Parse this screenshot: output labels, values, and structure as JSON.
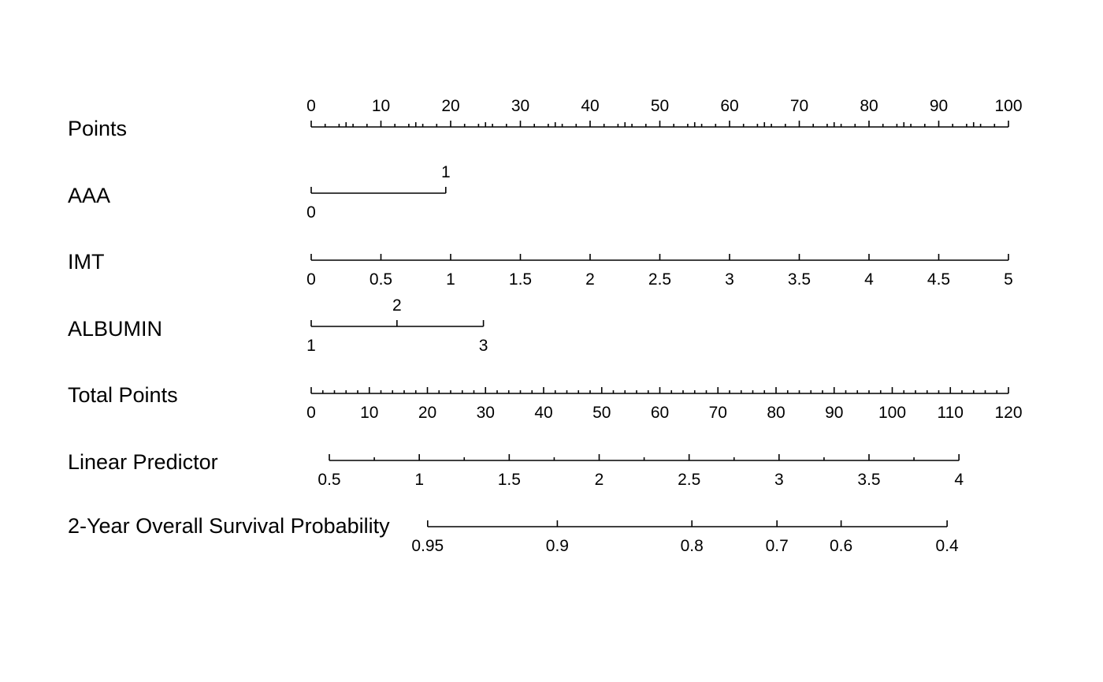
{
  "chart_data": {
    "type": "nomogram",
    "title": "",
    "colors": {
      "line": "#000000",
      "text": "#000000",
      "background": "#ffffff"
    },
    "points_range": [
      0,
      100
    ],
    "rows": [
      {
        "id": "points",
        "label": "Points",
        "labels_position": "above",
        "major_ticks": [
          {
            "value": 0,
            "points": 0,
            "label": "0"
          },
          {
            "value": 10,
            "points": 10,
            "label": "10"
          },
          {
            "value": 20,
            "points": 20,
            "label": "20"
          },
          {
            "value": 30,
            "points": 30,
            "label": "30"
          },
          {
            "value": 40,
            "points": 40,
            "label": "40"
          },
          {
            "value": 50,
            "points": 50,
            "label": "50"
          },
          {
            "value": 60,
            "points": 60,
            "label": "60"
          },
          {
            "value": 70,
            "points": 70,
            "label": "70"
          },
          {
            "value": 80,
            "points": 80,
            "label": "80"
          },
          {
            "value": 90,
            "points": 90,
            "label": "90"
          },
          {
            "value": 100,
            "points": 100,
            "label": "100"
          }
        ],
        "minor_points": [
          2,
          4,
          6,
          8,
          12,
          14,
          16,
          18,
          22,
          24,
          26,
          28,
          32,
          34,
          36,
          38,
          42,
          44,
          46,
          48,
          52,
          54,
          56,
          58,
          62,
          64,
          66,
          68,
          72,
          74,
          76,
          78,
          82,
          84,
          86,
          88,
          92,
          94,
          96,
          98
        ]
      },
      {
        "id": "aaa",
        "label": "AAA",
        "variable_type": "categorical",
        "major_ticks": [
          {
            "value": 0,
            "points": 0,
            "label": "0",
            "label_position": "below"
          },
          {
            "value": 1,
            "points": 19.3,
            "label": "1",
            "label_position": "above"
          }
        ],
        "minor_points": []
      },
      {
        "id": "imt",
        "label": "IMT",
        "labels_position": "below",
        "major_ticks": [
          {
            "value": 0,
            "points": 0,
            "label": "0"
          },
          {
            "value": 0.5,
            "points": 10,
            "label": "0.5"
          },
          {
            "value": 1,
            "points": 20,
            "label": "1"
          },
          {
            "value": 1.5,
            "points": 30,
            "label": "1.5"
          },
          {
            "value": 2,
            "points": 40,
            "label": "2"
          },
          {
            "value": 2.5,
            "points": 50,
            "label": "2.5"
          },
          {
            "value": 3,
            "points": 60,
            "label": "3"
          },
          {
            "value": 3.5,
            "points": 70,
            "label": "3.5"
          },
          {
            "value": 4,
            "points": 80,
            "label": "4"
          },
          {
            "value": 4.5,
            "points": 90,
            "label": "4.5"
          },
          {
            "value": 5,
            "points": 100,
            "label": "5"
          }
        ],
        "minor_points": []
      },
      {
        "id": "albumin",
        "label": "ALBUMIN",
        "variable_type": "categorical",
        "major_ticks": [
          {
            "value": 1,
            "points": 0,
            "label": "1",
            "label_position": "below"
          },
          {
            "value": 2,
            "points": 12.3,
            "label": "2",
            "label_position": "above"
          },
          {
            "value": 3,
            "points": 24.7,
            "label": "3",
            "label_position": "below"
          }
        ],
        "minor_points": []
      },
      {
        "id": "total_points",
        "label": "Total Points",
        "labels_position": "below",
        "scale": {
          "min": 0,
          "max": 120
        },
        "major_ticks": [
          {
            "value": 0,
            "points": 0,
            "label": "0"
          },
          {
            "value": 10,
            "points": 8.333,
            "label": "10"
          },
          {
            "value": 20,
            "points": 16.667,
            "label": "20"
          },
          {
            "value": 30,
            "points": 25,
            "label": "30"
          },
          {
            "value": 40,
            "points": 33.333,
            "label": "40"
          },
          {
            "value": 50,
            "points": 41.667,
            "label": "50"
          },
          {
            "value": 60,
            "points": 50,
            "label": "60"
          },
          {
            "value": 70,
            "points": 58.333,
            "label": "70"
          },
          {
            "value": 80,
            "points": 66.667,
            "label": "80"
          },
          {
            "value": 90,
            "points": 75,
            "label": "90"
          },
          {
            "value": 100,
            "points": 83.333,
            "label": "100"
          },
          {
            "value": 110,
            "points": 91.667,
            "label": "110"
          },
          {
            "value": 120,
            "points": 100,
            "label": "120"
          }
        ],
        "minor_points": [
          1.667,
          3.333,
          5,
          6.667,
          10,
          11.667,
          13.333,
          15,
          18.333,
          20,
          21.667,
          23.333,
          26.667,
          28.333,
          30,
          31.667,
          35,
          36.667,
          38.333,
          40,
          43.333,
          45,
          46.667,
          48.333,
          51.667,
          53.333,
          55,
          56.667,
          60,
          61.667,
          63.333,
          65,
          68.333,
          70,
          71.667,
          73.333,
          76.667,
          78.333,
          80,
          81.667,
          85,
          86.667,
          88.333,
          90,
          93.333,
          95,
          96.667,
          98.333
        ]
      },
      {
        "id": "linear_predictor",
        "label": "Linear Predictor",
        "labels_position": "below",
        "major_ticks": [
          {
            "value": 0.5,
            "points": 2.6,
            "label": "0.5"
          },
          {
            "value": 1,
            "points": 15.5,
            "label": "1"
          },
          {
            "value": 1.5,
            "points": 28.4,
            "label": "1.5"
          },
          {
            "value": 2,
            "points": 41.3,
            "label": "2"
          },
          {
            "value": 2.5,
            "points": 54.2,
            "label": "2.5"
          },
          {
            "value": 3,
            "points": 67.1,
            "label": "3"
          },
          {
            "value": 3.5,
            "points": 80.0,
            "label": "3.5"
          },
          {
            "value": 4,
            "points": 92.9,
            "label": "4"
          }
        ],
        "minor_points": [
          9.05,
          21.95,
          34.85,
          47.75,
          60.65,
          73.55,
          86.45
        ]
      },
      {
        "id": "survival",
        "label": "2-Year Overall Survival Probability",
        "labels_position": "below",
        "major_ticks": [
          {
            "value": 0.95,
            "points": 16.7,
            "label": "0.95"
          },
          {
            "value": 0.9,
            "points": 35.3,
            "label": "0.9"
          },
          {
            "value": 0.8,
            "points": 54.6,
            "label": "0.8"
          },
          {
            "value": 0.7,
            "points": 66.8,
            "label": "0.7"
          },
          {
            "value": 0.6,
            "points": 76.0,
            "label": "0.6"
          },
          {
            "value": 0.4,
            "points": 91.2,
            "label": "0.4"
          }
        ],
        "minor_points": []
      }
    ]
  }
}
